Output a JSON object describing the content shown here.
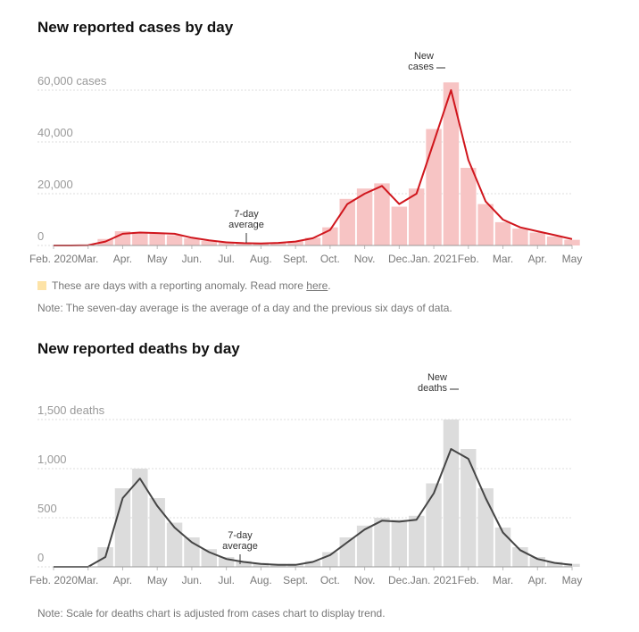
{
  "chart_data": [
    {
      "type": "combo",
      "title": "New reported cases by day",
      "x": [
        0,
        0.5,
        1,
        1.5,
        2,
        2.5,
        3,
        3.5,
        4,
        4.5,
        5,
        5.5,
        6,
        6.5,
        7,
        7.5,
        8,
        8.5,
        9,
        9.5,
        10,
        10.5,
        11,
        11.5,
        12,
        12.5,
        13,
        13.5,
        14,
        14.5,
        15
      ],
      "xlim": [
        0,
        15
      ],
      "xticks": [
        {
          "value": 0,
          "label": "Feb. 2020"
        },
        {
          "value": 1,
          "label": "Mar."
        },
        {
          "value": 2,
          "label": "Apr."
        },
        {
          "value": 3,
          "label": "May"
        },
        {
          "value": 4,
          "label": "Jun."
        },
        {
          "value": 5,
          "label": "Jul."
        },
        {
          "value": 6,
          "label": "Aug."
        },
        {
          "value": 7,
          "label": "Sept."
        },
        {
          "value": 8,
          "label": "Oct."
        },
        {
          "value": 9,
          "label": "Nov."
        },
        {
          "value": 10,
          "label": "Dec."
        },
        {
          "value": 11,
          "label": "Jan. 2021"
        },
        {
          "value": 12,
          "label": "Feb."
        },
        {
          "value": 13,
          "label": "Mar."
        },
        {
          "value": 14,
          "label": "Apr."
        },
        {
          "value": 15,
          "label": "May"
        }
      ],
      "ylim": [
        0,
        70000
      ],
      "yticks": [
        0,
        {
          "value": 20000,
          "label": "20,000"
        },
        {
          "value": 40000,
          "label": "40,000"
        },
        {
          "value": 60000,
          "label": "60,000 cases"
        }
      ],
      "grid": true,
      "series": [
        {
          "name": "New cases",
          "mark": "bar",
          "color": "#f7c4c4",
          "values": [
            0,
            0,
            200,
            2500,
            5500,
            5200,
            4700,
            4000,
            2800,
            1800,
            1100,
            800,
            900,
            1200,
            1700,
            3000,
            7000,
            18000,
            22000,
            24000,
            15000,
            22000,
            45000,
            63000,
            30000,
            16000,
            9000,
            6500,
            5000,
            3500,
            2200
          ]
        },
        {
          "name": "7-day average",
          "mark": "line",
          "color": "#d0161d",
          "values": [
            0,
            0,
            100,
            1500,
            4500,
            5000,
            4800,
            4500,
            3000,
            2000,
            1200,
            900,
            800,
            1000,
            1500,
            2800,
            6000,
            16000,
            20000,
            23000,
            16000,
            20000,
            40000,
            60000,
            33000,
            17000,
            10000,
            7000,
            5500,
            4000,
            2500
          ]
        }
      ],
      "anomaly_color": "#fde3a7",
      "anomaly_note": "These are days with a reporting anomaly. Read more",
      "anomaly_link": "here",
      "anomaly_end": ".",
      "note": "Note: The seven-day average is the average of a day and the previous six days of data."
    },
    {
      "type": "combo",
      "title": "New reported deaths by day",
      "x": [
        0,
        0.5,
        1,
        1.5,
        2,
        2.5,
        3,
        3.5,
        4,
        4.5,
        5,
        5.5,
        6,
        6.5,
        7,
        7.5,
        8,
        8.5,
        9,
        9.5,
        10,
        10.5,
        11,
        11.5,
        12,
        12.5,
        13,
        13.5,
        14,
        14.5,
        15
      ],
      "xlim": [
        0,
        15
      ],
      "xticks": [
        {
          "value": 0,
          "label": "Feb. 2020"
        },
        {
          "value": 1,
          "label": "Mar."
        },
        {
          "value": 2,
          "label": "Apr."
        },
        {
          "value": 3,
          "label": "May"
        },
        {
          "value": 4,
          "label": "Jun."
        },
        {
          "value": 5,
          "label": "Jul."
        },
        {
          "value": 6,
          "label": "Aug."
        },
        {
          "value": 7,
          "label": "Sept."
        },
        {
          "value": 8,
          "label": "Oct."
        },
        {
          "value": 9,
          "label": "Nov."
        },
        {
          "value": 10,
          "label": "Dec."
        },
        {
          "value": 11,
          "label": "Jan. 2021"
        },
        {
          "value": 12,
          "label": "Feb."
        },
        {
          "value": 13,
          "label": "Mar."
        },
        {
          "value": 14,
          "label": "Apr."
        },
        {
          "value": 15,
          "label": "May"
        }
      ],
      "ylim": [
        0,
        1800
      ],
      "yticks": [
        0,
        500,
        {
          "value": 1000,
          "label": "1,000"
        },
        {
          "value": 1500,
          "label": "1,500 deaths"
        }
      ],
      "grid": true,
      "series": [
        {
          "name": "New deaths",
          "mark": "bar",
          "color": "#dcdcdc",
          "values": [
            0,
            0,
            0,
            200,
            800,
            1000,
            700,
            450,
            300,
            180,
            100,
            60,
            40,
            30,
            30,
            60,
            150,
            300,
            420,
            500,
            480,
            520,
            850,
            1500,
            1200,
            800,
            400,
            200,
            100,
            50,
            30
          ]
        },
        {
          "name": "7-day average",
          "mark": "line",
          "color": "#454545",
          "values": [
            0,
            0,
            0,
            100,
            700,
            900,
            620,
            400,
            250,
            150,
            80,
            50,
            30,
            20,
            20,
            50,
            120,
            250,
            380,
            470,
            460,
            480,
            750,
            1200,
            1100,
            700,
            350,
            170,
            80,
            40,
            20
          ]
        }
      ],
      "note": "Note: Scale for deaths chart is adjusted from cases chart to display trend."
    }
  ]
}
